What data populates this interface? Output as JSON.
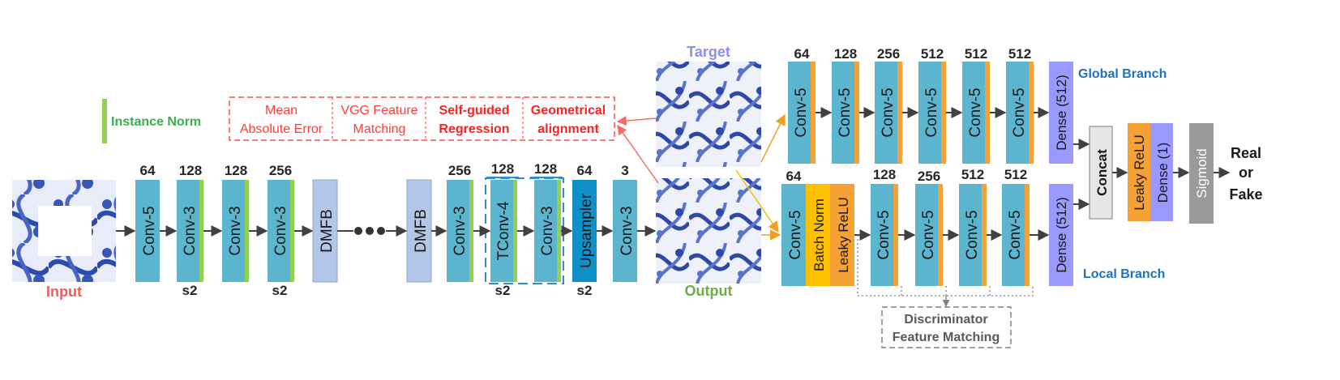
{
  "legend": {
    "instance_norm": "Instance Norm"
  },
  "losses": [
    "Mean",
    "Absolute Error",
    "VGG Feature",
    "Matching",
    "Self-guided",
    "Regression",
    "Geometrical",
    "alignment"
  ],
  "images": {
    "input": "Input",
    "target": "Target",
    "output": "Output"
  },
  "generator": {
    "layers": [
      "Conv-5",
      "Conv-3",
      "Conv-3",
      "Conv-3",
      "DMFB",
      "DMFB",
      "Conv-3",
      "TConv-4",
      "Conv-3",
      "Upsampler",
      "Conv-3"
    ],
    "channels": [
      "64",
      "128",
      "128",
      "256",
      "256",
      "128",
      "128",
      "64",
      "3"
    ],
    "strides": [
      "s2",
      "s2",
      "s2",
      "s2"
    ]
  },
  "global_branch": {
    "title": "Global Branch",
    "channels": [
      "64",
      "128",
      "256",
      "512",
      "512",
      "512"
    ],
    "layers": [
      "Conv-5",
      "Conv-5",
      "Conv-5",
      "Conv-5",
      "Conv-5",
      "Conv-5"
    ],
    "dense": "Dense (512)"
  },
  "local_branch": {
    "title": "Local Branch",
    "channels": [
      "64",
      "128",
      "256",
      "512",
      "512"
    ],
    "layers": [
      "Conv-5",
      "Batch Norm",
      "Leaky ReLU",
      "Conv-5",
      "Conv-5",
      "Conv-5",
      "Conv-5"
    ],
    "dense": "Dense (512)"
  },
  "head": {
    "concat": "Concat",
    "leaky": "Leaky ReLU",
    "dense1": "Dense (1)",
    "sigmoid": "Sigmoid",
    "result": [
      "Real",
      "or",
      "Fake"
    ]
  },
  "disc_feature": [
    "Discriminator",
    "Feature Matching"
  ],
  "colors": {
    "conv": "#5bb5cf",
    "dmfb": "#b3c6e7",
    "upsampler": "#0f90c8",
    "instance_norm": "#92d050",
    "orange": "#f5a133",
    "batchnorm": "#ffc000",
    "dense": "#9999ff",
    "concat": "#e7e6e6",
    "sigmoid": "#9a9a9a",
    "loss_red": "#ff3c3c",
    "label_green": "#3aae4c",
    "label_blue": "#1f6fc3",
    "input_red": "#f25a5a",
    "target_purple": "#8d8df5",
    "output_green": "#70ad47"
  }
}
